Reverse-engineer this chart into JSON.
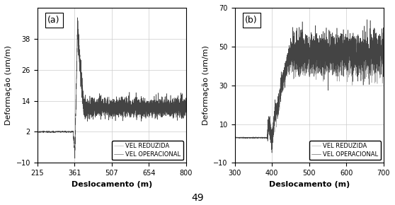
{
  "subplot_a": {
    "label": "(a)",
    "xlim": [
      215,
      800
    ],
    "ylim": [
      -10,
      50
    ],
    "xticks": [
      215,
      361,
      507,
      654,
      800
    ],
    "yticks": [
      -10,
      2,
      14,
      26,
      38
    ],
    "xlabel": "Deslocamento (m)",
    "ylabel": "Deformação (um/m)",
    "legend": [
      "VEL OPERACIONAL",
      "VEL REDUZIDA"
    ],
    "baseline_y": 2.0,
    "peak_y": 42.0,
    "settle_y": 11.0,
    "noise_level_op": 11.5,
    "noise_level_red": 10.8,
    "noise_amp_op": 1.8,
    "noise_amp_red": 1.2,
    "transition_x1": 356,
    "transition_x2": 363,
    "transition_x3": 373,
    "transition_x4": 398,
    "color_operational": "#444444",
    "color_reduced": "#999999"
  },
  "subplot_b": {
    "label": "(b)",
    "xlim": [
      300,
      700
    ],
    "ylim": [
      -10,
      70
    ],
    "xticks": [
      300,
      400,
      500,
      600,
      700
    ],
    "yticks": [
      -10,
      10,
      30,
      50,
      70
    ],
    "xlabel": "Deslocamento (m)",
    "ylabel": "Deformação (um/m)",
    "legend": [
      "VEL OPERACIONAL",
      "VEL REDUZIDA"
    ],
    "baseline_y": 3.0,
    "plateau_y_op": 47.0,
    "plateau_y_red": 43.0,
    "noise_amp_op": 5.0,
    "noise_amp_red": 4.0,
    "transition_x1": 388,
    "transition_x2": 455,
    "color_operational": "#444444",
    "color_reduced": "#999999"
  },
  "page_number": "49",
  "background_color": "#ffffff",
  "grid_color": "#cccccc",
  "fontsize_labels": 8,
  "fontsize_ticks": 7,
  "fontsize_legend": 6,
  "fontsize_page": 10
}
